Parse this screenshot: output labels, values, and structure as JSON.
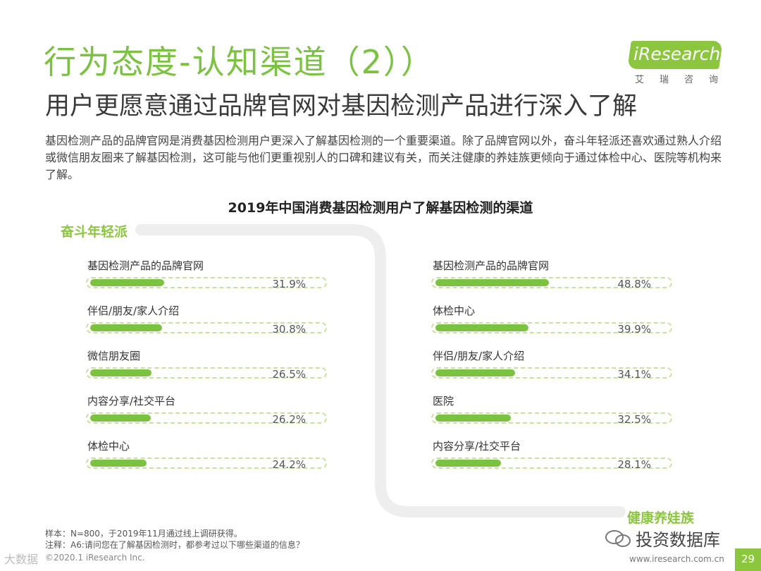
{
  "header": {
    "title": "行为态度-认知渠道（2））",
    "subtitle": "用户更愿意通过品牌官网对基因检测产品进行深入了解",
    "description": "基因检测产品的品牌官网是消费基因检测用户更深入了解基因检测的一个重要渠道。除了品牌官网以外，奋斗年轻派还喜欢通过熟人介绍或微信朋友圈来了解基因检测，这可能与他们更重视别人的口碑和建议有关，而关注健康的养娃族更倾向于通过体检中心、医院等机构来了解。"
  },
  "logo": {
    "text": "iResearch",
    "cn": "艾瑞咨询"
  },
  "colors": {
    "accent": "#7cc242",
    "track": "#c7e29a"
  },
  "chart_data": {
    "type": "bar",
    "title": "2019年中国消费基因检测用户了解基因检测的渠道",
    "unit": "%",
    "groups": [
      {
        "name": "奋斗年轻派",
        "categories": [
          "基因检测产品的品牌官网",
          "伴侣/朋友/家人介绍",
          "微信朋友圈",
          "内容分享/社交平台",
          "体检中心"
        ],
        "values": [
          31.9,
          30.8,
          26.5,
          26.2,
          24.2
        ],
        "labels": [
          "31.9%",
          "30.8%",
          "26.5%",
          "26.2%",
          "24.2%"
        ]
      },
      {
        "name": "健康养娃族",
        "categories": [
          "基因检测产品的品牌官网",
          "体检中心",
          "伴侣/朋友/家人介绍",
          "医院",
          "内容分享/社交平台"
        ],
        "values": [
          48.8,
          39.9,
          34.1,
          32.5,
          28.1
        ],
        "labels": [
          "48.8%",
          "39.9%",
          "34.1%",
          "32.5%",
          "28.1%"
        ]
      }
    ],
    "xlim": [
      0,
      100
    ]
  },
  "footer": {
    "note1": "样本：N=800，于2019年11月通过线上调研获得。",
    "note2": "注释：A6:请问您在了解基因检测时，都参考过以下哪些渠道的信息？",
    "copyright": "©2020.1 iResearch Inc.",
    "website": "www.iresearch.com.cn",
    "page": "29"
  },
  "watermark": {
    "right": "投资数据库",
    "left": "大数据"
  }
}
